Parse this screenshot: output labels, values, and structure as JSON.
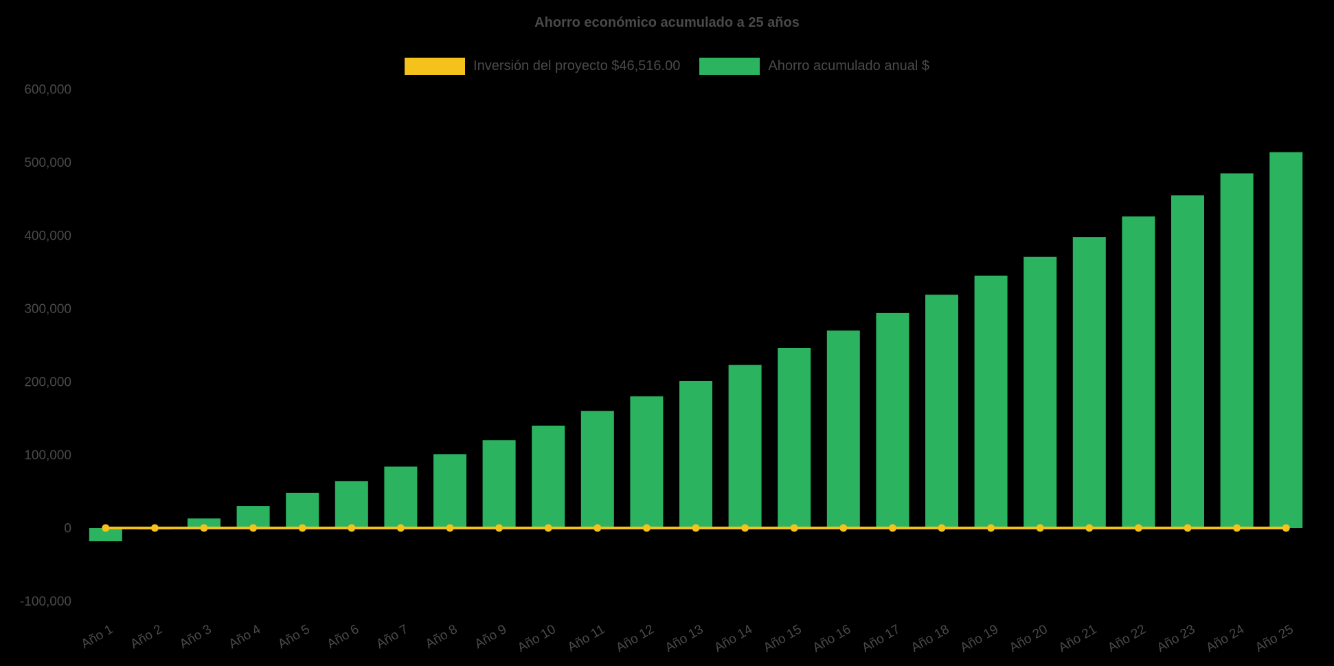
{
  "chart_data": {
    "type": "bar",
    "title": "Ahorro económico acumulado a 25 años",
    "legend_position": "top",
    "grid": false,
    "background": "#000000",
    "text_color": "#4a4a4a",
    "categories": [
      "Año 1",
      "Año 2",
      "Año 3",
      "Año 4",
      "Año 5",
      "Año 6",
      "Año 7",
      "Año 8",
      "Año 9",
      "Año 10",
      "Año 11",
      "Año 12",
      "Año 13",
      "Año 14",
      "Año 15",
      "Año 16",
      "Año 17",
      "Año 18",
      "Año 19",
      "Año 20",
      "Año 21",
      "Año 22",
      "Año 23",
      "Año 24",
      "Año 25"
    ],
    "series": [
      {
        "name": "Inversión del proyecto $46,516.00",
        "type": "line",
        "color": "#f5c21b",
        "constant_value": 0,
        "point_style": "circle"
      },
      {
        "name": "Ahorro acumulado anual $",
        "type": "bar",
        "color": "#2bb35f",
        "values": [
          -18000,
          -2000,
          13000,
          30000,
          48000,
          64000,
          84000,
          101000,
          120000,
          140000,
          160000,
          180000,
          201000,
          223000,
          246000,
          270000,
          294000,
          319000,
          345000,
          371000,
          398000,
          426000,
          455000,
          485000,
          514000
        ]
      }
    ],
    "ylim": [
      -100000,
      600000
    ],
    "ytick_step": 100000,
    "ytick_labels": [
      "-100,000",
      "0",
      "100,000",
      "200,000",
      "300,000",
      "400,000",
      "500,000",
      "600,000"
    ],
    "xlabel": "",
    "ylabel": ""
  }
}
